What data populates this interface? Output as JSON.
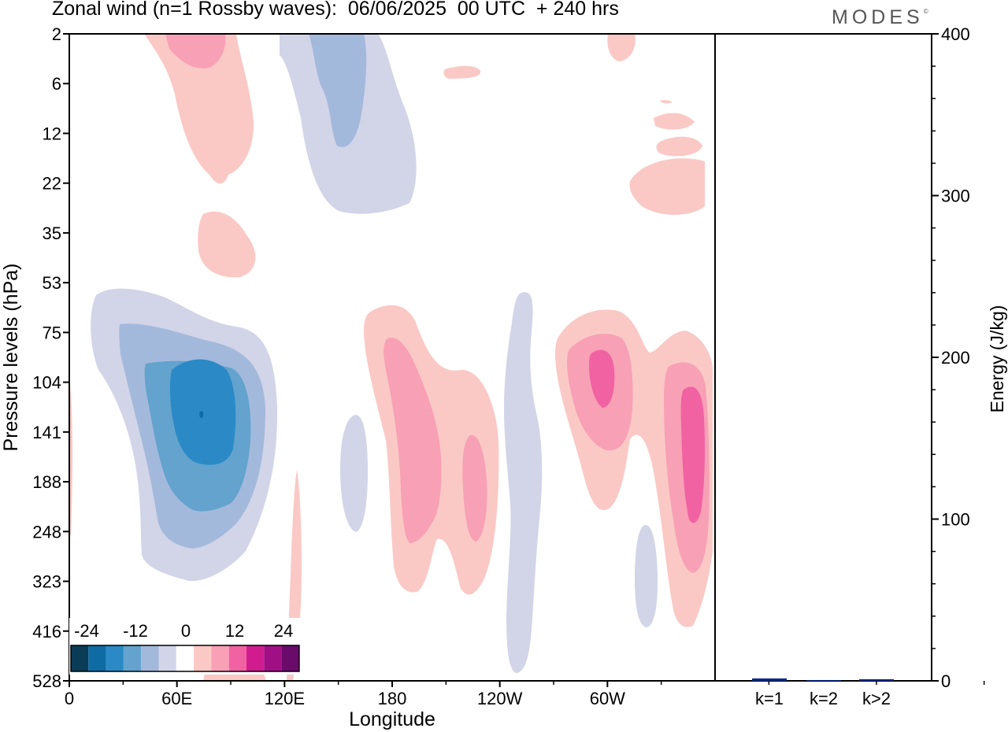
{
  "chart_data": [
    {
      "type": "heatmap",
      "title": "Zonal wind (n=1 Rossby waves):  06/06/2025  00 UTC  + 240 hrs",
      "xlabel": "Longitude",
      "ylabel": "Pressure levels (hPa)",
      "x_ticks": [
        "0",
        "60E",
        "120E",
        "180",
        "120W",
        "60W"
      ],
      "y_ticks": [
        "2",
        "6",
        "12",
        "22",
        "35",
        "53",
        "75",
        "104",
        "141",
        "188",
        "248",
        "323",
        "416",
        "528"
      ],
      "colorbar": {
        "labels": [
          "-24",
          "-12",
          "0",
          "12",
          "24"
        ],
        "colors": [
          "#0a3c58",
          "#0f6ba3",
          "#2b8ac6",
          "#63a3cd",
          "#a3b9dc",
          "#d2d4e8",
          "#ffffff",
          "#fac9c5",
          "#f8a0b5",
          "#f062a2",
          "#d11c8f",
          "#a01084",
          "#6a0b6c"
        ]
      },
      "contour_regions": [
        {
          "level": -24,
          "lon": 72,
          "pressure_level": 120,
          "description": "minimum core"
        },
        {
          "level": 12,
          "lon": 285,
          "pressure_level": 104,
          "description": "maximum core"
        }
      ]
    },
    {
      "type": "bar",
      "ylabel": "Energy (J/kg)",
      "ylim": [
        0,
        400
      ],
      "y_ticks": [
        "0",
        "100",
        "200",
        "300",
        "400"
      ],
      "categories": [
        "k=1",
        "k=2",
        "k>2"
      ],
      "values": [
        1.5,
        0.5,
        1
      ],
      "bar_color": "#0b2a8a"
    }
  ],
  "brand": {
    "name": "MODES",
    "mark": "©"
  }
}
